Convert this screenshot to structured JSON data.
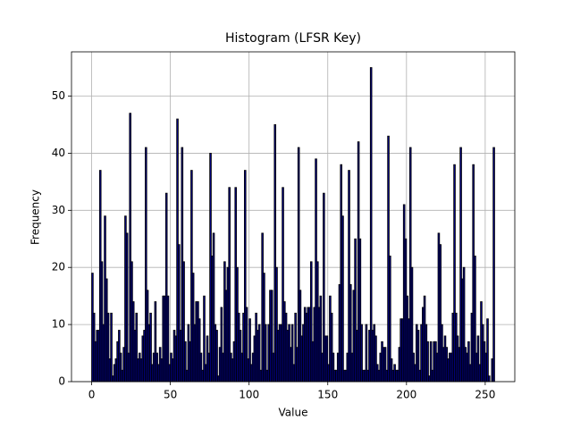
{
  "chart_data": {
    "type": "histogram",
    "title": "Histogram (LFSR Key)",
    "xlabel": "Value",
    "ylabel": "Frequency",
    "bins": [
      0,
      1,
      2,
      3,
      4,
      5,
      6,
      7,
      8,
      9,
      10,
      11,
      12,
      13,
      14,
      15,
      16,
      17,
      18,
      19,
      20,
      21,
      22,
      23,
      24,
      25,
      26,
      27,
      28,
      29,
      30,
      31,
      32,
      33,
      34,
      35,
      36,
      37,
      38,
      39,
      40,
      41,
      42,
      43,
      44,
      45,
      46,
      47,
      48,
      49,
      50,
      51,
      52,
      53,
      54,
      55,
      56,
      57,
      58,
      59,
      60,
      61,
      62,
      63,
      64,
      65,
      66,
      67,
      68,
      69,
      70,
      71,
      72,
      73,
      74,
      75,
      76,
      77,
      78,
      79,
      80,
      81,
      82,
      83,
      84,
      85,
      86,
      87,
      88,
      89,
      90,
      91,
      92,
      93,
      94,
      95,
      96,
      97,
      98,
      99,
      100,
      101,
      102,
      103,
      104,
      105,
      106,
      107,
      108,
      109,
      110,
      111,
      112,
      113,
      114,
      115,
      116,
      117,
      118,
      119,
      120,
      121,
      122,
      123,
      124,
      125,
      126,
      127,
      128,
      129,
      130,
      131,
      132,
      133,
      134,
      135,
      136,
      137,
      138,
      139,
      140,
      141,
      142,
      143,
      144,
      145,
      146,
      147,
      148,
      149,
      150,
      151,
      152,
      153,
      154,
      155,
      156,
      157,
      158,
      159,
      160,
      161,
      162,
      163,
      164,
      165,
      166,
      167,
      168,
      169,
      170,
      171,
      172,
      173,
      174,
      175,
      176,
      177,
      178,
      179,
      180,
      181,
      182,
      183,
      184,
      185,
      186,
      187,
      188,
      189,
      190,
      191,
      192,
      193,
      194,
      195,
      196,
      197,
      198,
      199,
      200,
      201,
      202,
      203,
      204,
      205,
      206,
      207,
      208,
      209,
      210,
      211,
      212,
      213,
      214,
      215,
      216,
      217,
      218,
      219,
      220,
      221,
      222,
      223,
      224,
      225,
      226,
      227,
      228,
      229,
      230,
      231,
      232,
      233,
      234,
      235,
      236,
      237,
      238,
      239,
      240,
      241,
      242,
      243,
      244,
      245,
      246,
      247,
      248,
      249,
      250,
      251,
      252,
      253,
      254,
      255,
      256
    ],
    "values": [
      19,
      12,
      7,
      9,
      9,
      37,
      21,
      10,
      29,
      18,
      12,
      4,
      12,
      1,
      3,
      4,
      7,
      9,
      5,
      2,
      6,
      29,
      26,
      5,
      47,
      21,
      14,
      9,
      12,
      4,
      5,
      4,
      8,
      9,
      41,
      16,
      10,
      12,
      3,
      5,
      14,
      5,
      3,
      6,
      4,
      15,
      15,
      33,
      15,
      3,
      5,
      4,
      9,
      8,
      46,
      24,
      9,
      41,
      21,
      7,
      2,
      10,
      7,
      37,
      19,
      10,
      14,
      14,
      11,
      5,
      2,
      15,
      3,
      8,
      5,
      40,
      22,
      26,
      10,
      9,
      1,
      6,
      13,
      5,
      21,
      16,
      20,
      34,
      5,
      4,
      7,
      34,
      20,
      12,
      9,
      5,
      12,
      37,
      13,
      4,
      11,
      3,
      5,
      8,
      12,
      9,
      10,
      2,
      26,
      19,
      10,
      2,
      10,
      16,
      16,
      5,
      45,
      20,
      9,
      10,
      10,
      34,
      14,
      12,
      9,
      10,
      6,
      10,
      3,
      12,
      6,
      41,
      16,
      8,
      10,
      13,
      12,
      13,
      13,
      21,
      7,
      13,
      39,
      21,
      13,
      15,
      5,
      33,
      8,
      8,
      3,
      15,
      12,
      5,
      2,
      2,
      5,
      17,
      38,
      29,
      2,
      2,
      5,
      37,
      17,
      5,
      16,
      25,
      9,
      42,
      25,
      10,
      2,
      2,
      10,
      2,
      9,
      55,
      9,
      10,
      8,
      3,
      2,
      5,
      7,
      6,
      6,
      2,
      43,
      22,
      4,
      2,
      3,
      2,
      2,
      6,
      11,
      11,
      31,
      25,
      15,
      11,
      41,
      20,
      5,
      3,
      10,
      9,
      2,
      10,
      13,
      15,
      10,
      7,
      1,
      7,
      2,
      7,
      7,
      5,
      26,
      24,
      10,
      6,
      8,
      6,
      4,
      5,
      5,
      12,
      38,
      12,
      8,
      6,
      41,
      18,
      20,
      6,
      5,
      7,
      3,
      12,
      38,
      22,
      5,
      8,
      3,
      14,
      10,
      7,
      5,
      11,
      1,
      0,
      4,
      41
    ],
    "color": "#000080",
    "edgecolor": "#000000",
    "xlim": [
      -12.8,
      268.8
    ],
    "xticks": [
      0,
      50,
      100,
      150,
      200,
      250
    ],
    "ylim": [
      0,
      57.75
    ],
    "yticks": [
      0,
      10,
      20,
      30,
      40,
      50
    ],
    "grid": true
  }
}
